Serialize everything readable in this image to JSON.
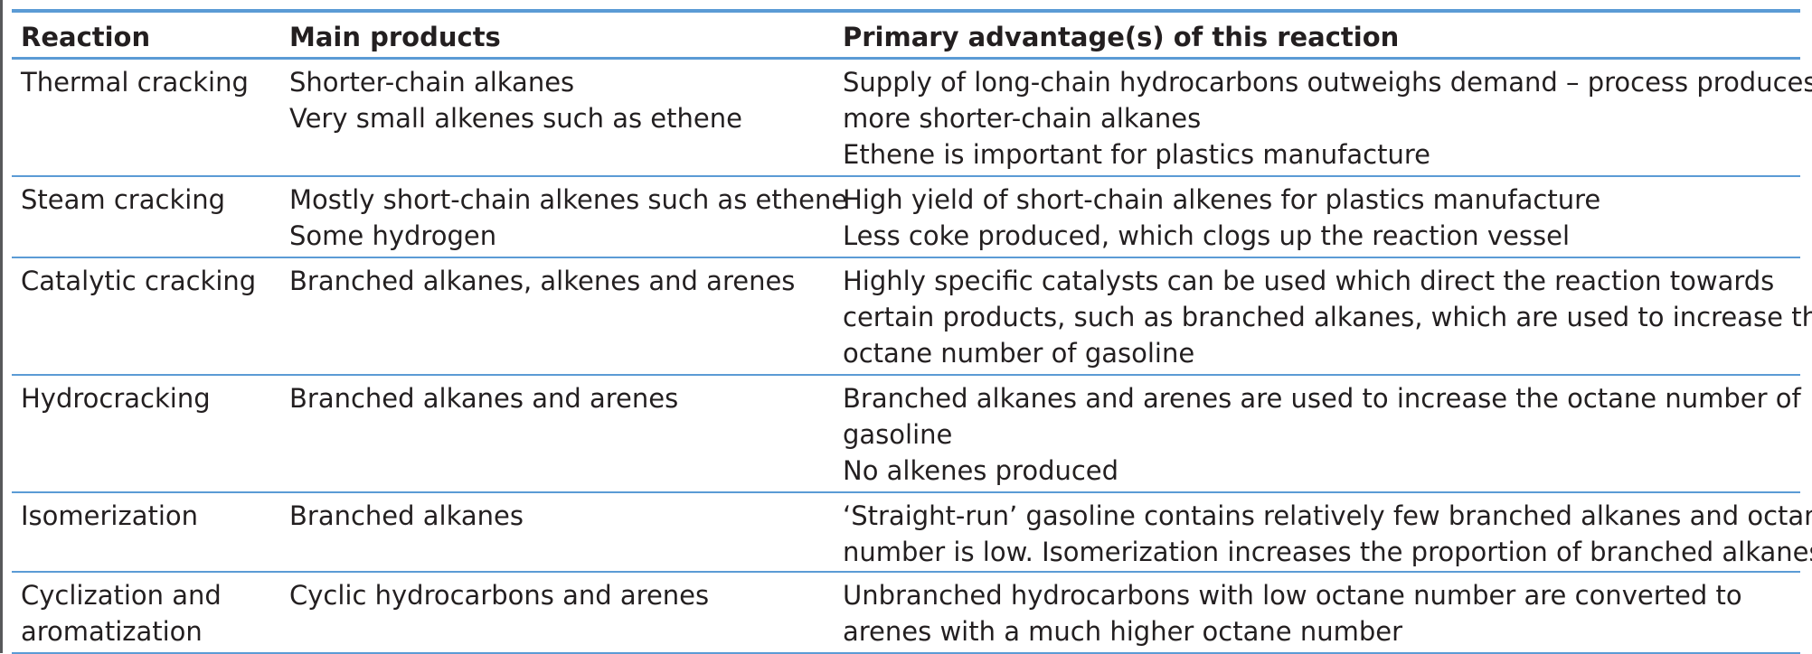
{
  "table": {
    "headers": [
      "Reaction",
      "Main products",
      "Primary advantage(s) of this reaction"
    ],
    "rows": [
      {
        "reaction": [
          "Thermal cracking"
        ],
        "products": [
          "Shorter-chain alkanes",
          "Very small alkenes such as ethene"
        ],
        "advantages": [
          "Supply of long-chain hydrocarbons outweighs demand – process produces",
          "more shorter-chain alkanes",
          "Ethene is important for plastics manufacture"
        ]
      },
      {
        "reaction": [
          "Steam cracking"
        ],
        "products": [
          "Mostly short-chain alkenes such as ethene",
          "Some hydrogen"
        ],
        "advantages": [
          "High yield of short-chain alkenes for plastics manufacture",
          "Less coke produced, which clogs up the reaction vessel"
        ]
      },
      {
        "reaction": [
          "Catalytic cracking"
        ],
        "products": [
          "Branched alkanes, alkenes and arenes"
        ],
        "advantages": [
          "Highly specific catalysts can be used which direct the reaction towards",
          "certain products, such as branched alkanes, which are used to increase the",
          "octane number of gasoline"
        ]
      },
      {
        "reaction": [
          "Hydrocracking"
        ],
        "products": [
          "Branched alkanes and arenes"
        ],
        "advantages": [
          "Branched alkanes and arenes are used to increase the octane number of",
          "gasoline",
          "No alkenes produced"
        ]
      },
      {
        "reaction": [
          "Isomerization"
        ],
        "products": [
          "Branched alkanes"
        ],
        "advantages": [
          "‘Straight-run’ gasoline contains relatively few branched alkanes and octane",
          "number is low. Isomerization increases the proportion of branched alkanes"
        ]
      },
      {
        "reaction": [
          "Cyclization and",
          "aromatization"
        ],
        "products": [
          "Cyclic hydrocarbons and arenes"
        ],
        "advantages": [
          "Unbranched hydrocarbons with low octane number are converted to",
          "arenes with a much higher octane number"
        ]
      }
    ]
  },
  "colors": {
    "rule": "#5b9bd5",
    "text": "#231f20",
    "left_bar": "#58595b"
  }
}
